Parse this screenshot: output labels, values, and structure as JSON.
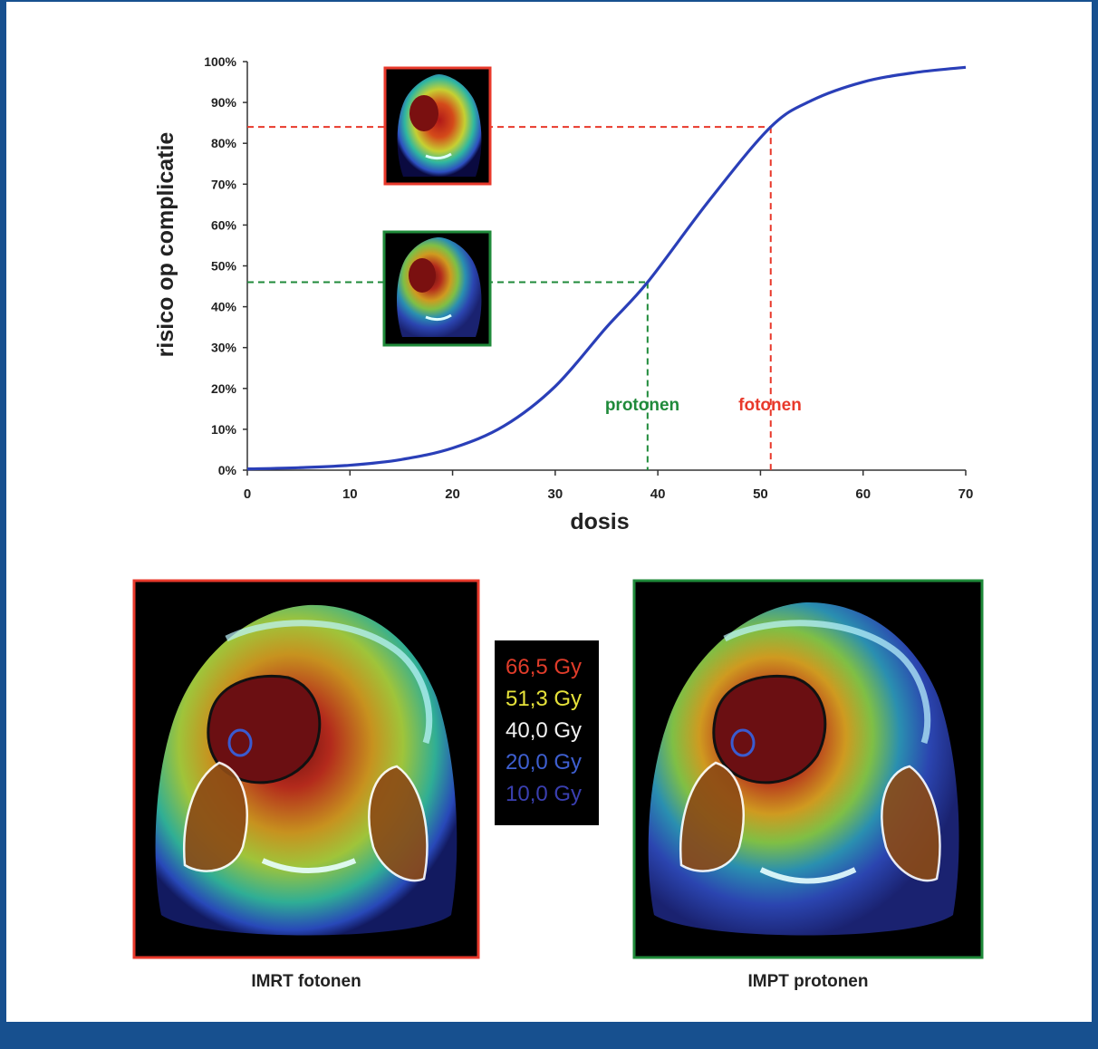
{
  "colors": {
    "frame": "#17508f",
    "curve": "#2a3fb8",
    "photon": "#e8392b",
    "proton": "#1f8a3a",
    "axis_text": "#222222"
  },
  "chart_data": {
    "type": "line",
    "title": "",
    "xlabel": "dosis",
    "ylabel": "risico op complicatie",
    "xlim": [
      0,
      70
    ],
    "ylim": [
      0,
      100
    ],
    "x_ticks": [
      0,
      10,
      20,
      30,
      40,
      50,
      60,
      70
    ],
    "x_tick_labels": [
      "0",
      "10",
      "20",
      "30",
      "40",
      "50",
      "60",
      "70"
    ],
    "y_ticks": [
      0,
      10,
      20,
      30,
      40,
      50,
      60,
      70,
      80,
      90,
      100
    ],
    "y_tick_labels": [
      "0%",
      "10%",
      "20%",
      "30%",
      "40%",
      "50%",
      "60%",
      "70%",
      "80%",
      "90%",
      "100%"
    ],
    "grid": false,
    "series": [
      {
        "name": "",
        "x": [
          0,
          5,
          10,
          15,
          20,
          25,
          30,
          35,
          39,
          45,
          51,
          55,
          60,
          65,
          70
        ],
        "y": [
          0.3,
          0.6,
          1.2,
          2.6,
          5.4,
          10.8,
          20.5,
          35.0,
          46.0,
          66.0,
          84.0,
          90.5,
          95.0,
          97.3,
          98.6
        ]
      }
    ],
    "annotations": [
      {
        "label": "protonen",
        "x": 39,
        "y": 46,
        "color": "#1f8a3a"
      },
      {
        "label": "fotonen",
        "x": 51,
        "y": 84,
        "color": "#e8392b"
      }
    ]
  },
  "panels": {
    "photon_caption": "IMRT fotonen",
    "proton_caption": "IMPT protonen"
  },
  "dose_legend": [
    {
      "label": "66,5 Gy",
      "color": "#e03c2a"
    },
    {
      "label": "51,3 Gy",
      "color": "#e6e23a"
    },
    {
      "label": "40,0 Gy",
      "color": "#f2f2f2"
    },
    {
      "label": "20,0 Gy",
      "color": "#3e5fd0"
    },
    {
      "label": "10,0 Gy",
      "color": "#3a3fb0"
    }
  ]
}
